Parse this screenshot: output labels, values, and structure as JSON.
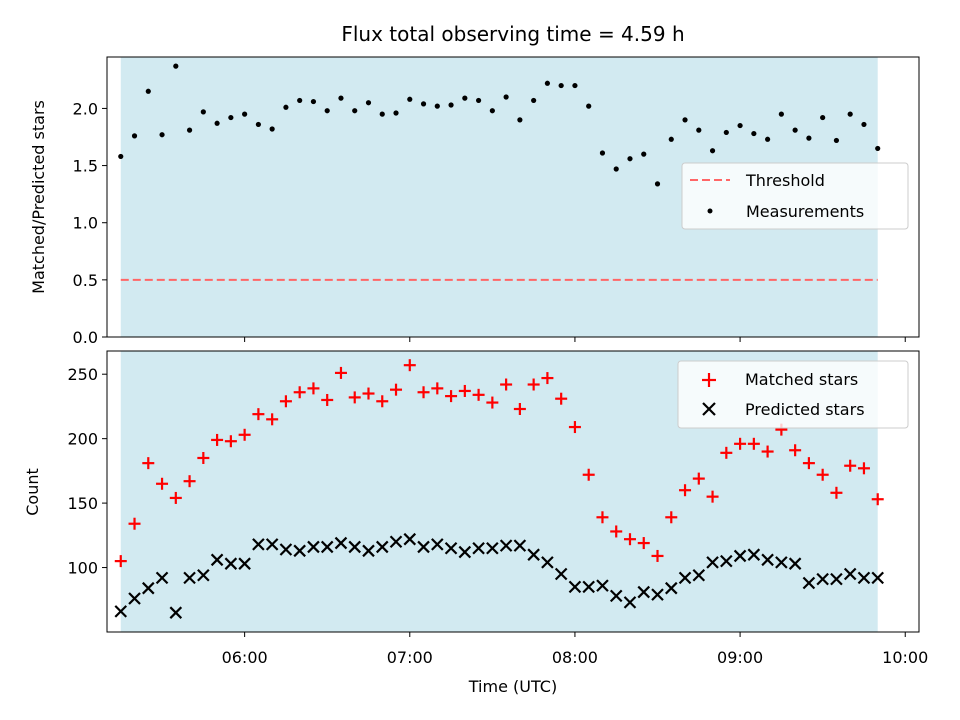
{
  "chart_data": [
    {
      "type": "scatter",
      "title": "Flux total observing time = 4.59 h",
      "xlabel": "",
      "ylabel": "Matched/Predicted stars",
      "x_range": [
        "05:10",
        "10:05"
      ],
      "ylim": [
        0,
        2.45
      ],
      "yticks": [
        0.0,
        0.5,
        1.0,
        1.5,
        2.0
      ],
      "ytick_labels": [
        "0.0",
        "0.5",
        "1.0",
        "1.5",
        "2.0"
      ],
      "grid": false,
      "legend_position": "center-right",
      "observing_window": {
        "start": "05:15",
        "end": "09:50",
        "color": "#add8e6"
      },
      "threshold": {
        "name": "Threshold",
        "value": 0.5,
        "color": "#ff6666",
        "style": "dashed"
      },
      "series": [
        {
          "name": "Measurements",
          "color": "#000000",
          "x": [
            "05:15",
            "05:20",
            "05:25",
            "05:30",
            "05:35",
            "05:40",
            "05:45",
            "05:50",
            "05:55",
            "06:00",
            "06:05",
            "06:10",
            "06:15",
            "06:20",
            "06:25",
            "06:30",
            "06:35",
            "06:40",
            "06:45",
            "06:50",
            "06:55",
            "07:00",
            "07:05",
            "07:10",
            "07:15",
            "07:20",
            "07:25",
            "07:30",
            "07:35",
            "07:40",
            "07:45",
            "07:50",
            "07:55",
            "08:00",
            "08:05",
            "08:10",
            "08:15",
            "08:20",
            "08:25",
            "08:30",
            "08:35",
            "08:40",
            "08:45",
            "08:50",
            "08:55",
            "09:00",
            "09:05",
            "09:10",
            "09:15",
            "09:20",
            "09:25",
            "09:30",
            "09:35",
            "09:40",
            "09:45",
            "09:50"
          ],
          "y": [
            1.58,
            1.76,
            2.15,
            1.77,
            2.37,
            1.81,
            1.97,
            1.87,
            1.92,
            1.95,
            1.86,
            1.82,
            2.01,
            2.07,
            2.06,
            1.98,
            2.09,
            1.98,
            2.05,
            1.95,
            1.96,
            2.08,
            2.04,
            2.02,
            2.03,
            2.09,
            2.07,
            1.98,
            2.1,
            1.9,
            2.07,
            2.22,
            2.2,
            2.2,
            2.02,
            1.61,
            1.47,
            1.56,
            1.6,
            1.34,
            1.73,
            1.9,
            1.81,
            1.63,
            1.79,
            1.85,
            1.78,
            1.73,
            1.95,
            1.81,
            1.74,
            1.92,
            1.72,
            1.95,
            1.86,
            1.65
          ]
        }
      ]
    },
    {
      "type": "scatter",
      "title": "",
      "xlabel": "Time (UTC)",
      "ylabel": "Count",
      "x_range": [
        "05:10",
        "10:05"
      ],
      "xticks": [
        "06:00",
        "07:00",
        "08:00",
        "09:00",
        "10:00"
      ],
      "ylim": [
        50,
        268
      ],
      "yticks": [
        100,
        150,
        200,
        250
      ],
      "ytick_labels": [
        "100",
        "150",
        "200",
        "250"
      ],
      "grid": false,
      "legend_position": "top-right",
      "observing_window": {
        "start": "05:15",
        "end": "09:50",
        "color": "#add8e6"
      },
      "series": [
        {
          "name": "Matched stars",
          "color": "#ff0000",
          "marker": "plus",
          "x": [
            "05:15",
            "05:20",
            "05:25",
            "05:30",
            "05:35",
            "05:40",
            "05:45",
            "05:50",
            "05:55",
            "06:00",
            "06:05",
            "06:10",
            "06:15",
            "06:20",
            "06:25",
            "06:30",
            "06:35",
            "06:40",
            "06:45",
            "06:50",
            "06:55",
            "07:00",
            "07:05",
            "07:10",
            "07:15",
            "07:20",
            "07:25",
            "07:30",
            "07:35",
            "07:40",
            "07:45",
            "07:50",
            "07:55",
            "08:00",
            "08:05",
            "08:10",
            "08:15",
            "08:20",
            "08:25",
            "08:30",
            "08:35",
            "08:40",
            "08:45",
            "08:50",
            "08:55",
            "09:00",
            "09:05",
            "09:10",
            "09:15",
            "09:20",
            "09:25",
            "09:30",
            "09:35",
            "09:40",
            "09:45",
            "09:50"
          ],
          "y": [
            105,
            134,
            181,
            165,
            154,
            167,
            185,
            199,
            198,
            203,
            219,
            215,
            229,
            236,
            239,
            230,
            251,
            232,
            235,
            229,
            238,
            257,
            236,
            239,
            233,
            237,
            234,
            228,
            242,
            223,
            242,
            247,
            231,
            209,
            172,
            139,
            128,
            122,
            119,
            109,
            139,
            160,
            169,
            155,
            189,
            196,
            196,
            190,
            207,
            191,
            181,
            172,
            158,
            179,
            177,
            153
          ]
        },
        {
          "name": "Predicted stars",
          "color": "#000000",
          "marker": "x",
          "x": [
            "05:15",
            "05:20",
            "05:25",
            "05:30",
            "05:35",
            "05:40",
            "05:45",
            "05:50",
            "05:55",
            "06:00",
            "06:05",
            "06:10",
            "06:15",
            "06:20",
            "06:25",
            "06:30",
            "06:35",
            "06:40",
            "06:45",
            "06:50",
            "06:55",
            "07:00",
            "07:05",
            "07:10",
            "07:15",
            "07:20",
            "07:25",
            "07:30",
            "07:35",
            "07:40",
            "07:45",
            "07:50",
            "07:55",
            "08:00",
            "08:05",
            "08:10",
            "08:15",
            "08:20",
            "08:25",
            "08:30",
            "08:35",
            "08:40",
            "08:45",
            "08:50",
            "08:55",
            "09:00",
            "09:05",
            "09:10",
            "09:15",
            "09:20",
            "09:25",
            "09:30",
            "09:35",
            "09:40",
            "09:45",
            "09:50"
          ],
          "y": [
            66,
            76,
            84,
            92,
            65,
            92,
            94,
            106,
            103,
            103,
            118,
            118,
            114,
            113,
            116,
            116,
            119,
            116,
            113,
            116,
            120,
            122,
            116,
            118,
            115,
            112,
            115,
            115,
            117,
            117,
            110,
            104,
            95,
            85,
            85,
            86,
            78,
            73,
            81,
            79,
            84,
            92,
            94,
            104,
            105,
            109,
            110,
            106,
            104,
            103,
            88,
            91,
            91,
            95,
            92,
            92
          ]
        }
      ]
    }
  ]
}
